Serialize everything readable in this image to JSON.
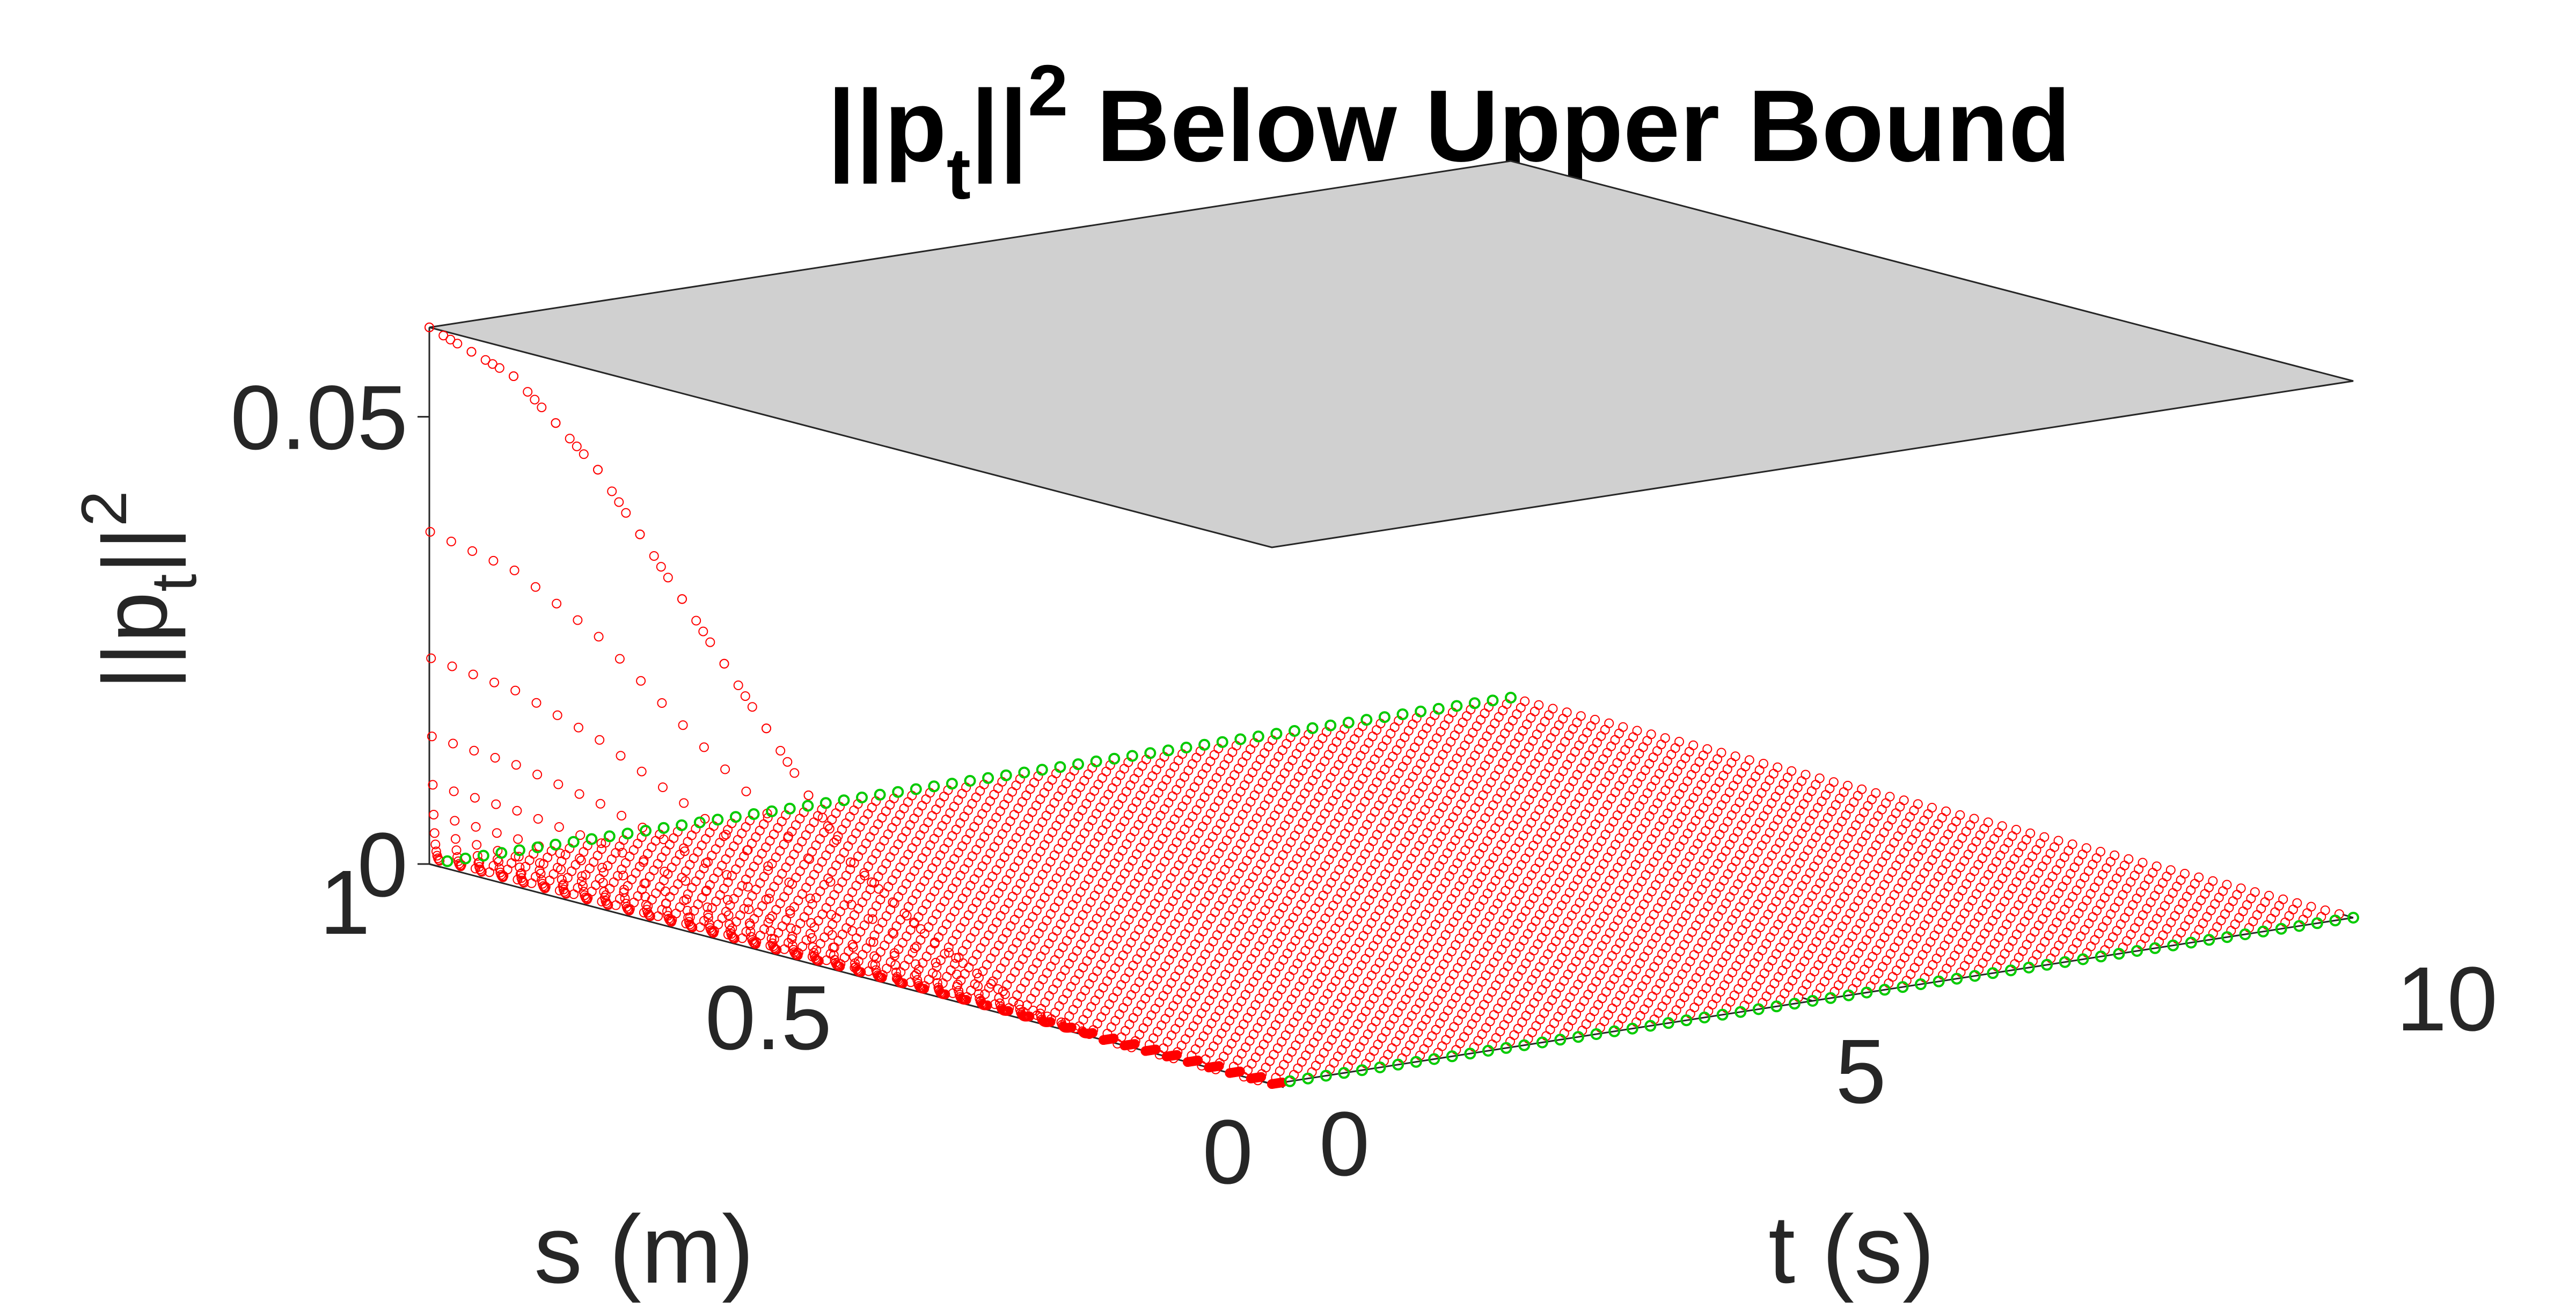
{
  "chart_data": {
    "type": "surface3d",
    "title": {
      "base": "||p",
      "sub": "t",
      "after": "||",
      "sup": "2",
      "rest": " Below Upper Bound"
    },
    "xlabel": "t (s)",
    "ylabel": "s (m)",
    "zlabel": {
      "base": "||p",
      "sub": "t",
      "after": "||",
      "sup": "2"
    },
    "x_ticks": [
      "0",
      "5",
      "10"
    ],
    "y_ticks": [
      "0",
      "0.5",
      "1"
    ],
    "z_ticks": [
      "0",
      "0.05"
    ],
    "xlim": [
      0,
      10
    ],
    "ylim": [
      0,
      1
    ],
    "zlim": [
      0,
      0.06
    ],
    "upper_bound": 0.06,
    "surface_profile_at_t0": {
      "s": [
        0,
        0.1,
        0.2,
        0.3,
        0.4,
        0.5,
        0.6,
        0.7,
        0.8,
        0.9,
        1.0
      ],
      "value": [
        0,
        0.0,
        0.0,
        0.0015,
        0.006,
        0.0125,
        0.025,
        0.037,
        0.049,
        0.057,
        0.06
      ]
    },
    "surface_value_for_t_gt_0": 0,
    "colors": {
      "bound_plane": "#d0d0d0",
      "bound_edge": "#262626",
      "surface_markers": "#ff0000",
      "boundary_markers": "#00cc00",
      "axis": "#262626"
    },
    "grid": false
  }
}
